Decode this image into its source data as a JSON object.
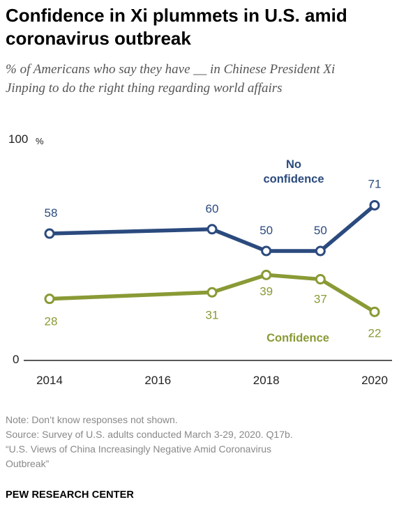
{
  "header": {
    "title": "Confidence in Xi plummets in U.S. amid coronavirus outbreak",
    "subtitle": "% of Americans who say they have __ in Chinese President Xi Jinping to do the right thing regarding world affairs"
  },
  "chart_data": {
    "type": "line",
    "title": "Confidence in Xi plummets in U.S. amid coronavirus outbreak",
    "xlabel": "",
    "ylabel": "",
    "x": [
      2014,
      2017,
      2018,
      2019,
      2020
    ],
    "x_tick_labels": [
      "2014",
      "2016",
      "2018",
      "2020"
    ],
    "y_top_label": "100",
    "y_top_unit": "%",
    "y_bottom_label": "0",
    "ylim": [
      0,
      100
    ],
    "grid": false,
    "series": [
      {
        "name": "No confidence",
        "values": [
          58,
          60,
          50,
          50,
          71
        ],
        "labels": [
          "58",
          "60",
          "50",
          "50",
          "71"
        ],
        "color": "#2b4a7e"
      },
      {
        "name": "Confidence",
        "values": [
          28,
          31,
          39,
          37,
          22
        ],
        "labels": [
          "28",
          "31",
          "39",
          "37",
          "22"
        ],
        "color": "#8a9a35"
      }
    ]
  },
  "footer": {
    "note": "Note: Don’t know responses not shown.",
    "source_line1": "Source: Survey of U.S. adults conducted March 3-29, 2020. Q17b.",
    "source_line2": "“U.S. Views of China Increasingly Negative Amid Coronavirus",
    "source_line3": "Outbreak”",
    "brand": "PEW RESEARCH CENTER"
  }
}
